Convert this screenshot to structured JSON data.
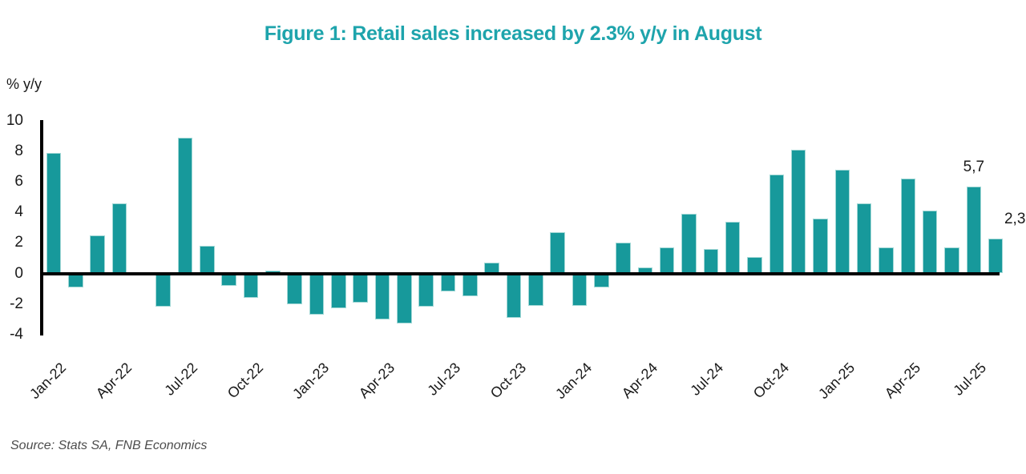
{
  "figure": {
    "title": "Figure 1: Retail sales increased by 2.3% y/y in August",
    "y_axis_unit_label": "% y/y",
    "source": "Source: Stats SA, FNB Economics"
  },
  "colors": {
    "title": "#1ea4ac",
    "bar": "#17999b",
    "bar_edge": "#a3d8d6",
    "axis": "#000000",
    "tick_text": "#1a1a1a",
    "source_text": "#4d4d4d"
  },
  "chart_data": {
    "type": "bar",
    "title": "Figure 1: Retail sales increased by 2.3% y/y in August",
    "ylabel": "% y/y",
    "xlabel": "",
    "ylim": [
      -4,
      10
    ],
    "yticks": [
      10,
      8,
      6,
      4,
      2,
      0,
      -2,
      -4
    ],
    "grid": false,
    "legend": false,
    "x": [
      "Jan-22",
      "Feb-22",
      "Mar-22",
      "Apr-22",
      "May-22",
      "Jun-22",
      "Jul-22",
      "Aug-22",
      "Sep-22",
      "Oct-22",
      "Nov-22",
      "Dec-22",
      "Jan-23",
      "Feb-23",
      "Mar-23",
      "Apr-23",
      "May-23",
      "Jun-23",
      "Jul-23",
      "Aug-23",
      "Sep-23",
      "Oct-23",
      "Nov-23",
      "Dec-23",
      "Jan-24",
      "Feb-24",
      "Mar-24",
      "Apr-24",
      "May-24",
      "Jun-24",
      "Jul-24",
      "Aug-24",
      "Sep-24",
      "Oct-24",
      "Nov-24",
      "Dec-24",
      "Jan-25",
      "Feb-25",
      "Mar-25",
      "Apr-25",
      "May-25",
      "Jun-25",
      "Jul-25",
      "Aug-25"
    ],
    "values": [
      7.9,
      -0.9,
      2.5,
      4.6,
      0.0,
      -2.2,
      8.9,
      1.8,
      -0.8,
      -1.6,
      0.2,
      -2.0,
      -2.7,
      -2.3,
      -1.9,
      -3.0,
      -3.3,
      -2.2,
      -1.2,
      -1.5,
      0.7,
      -2.9,
      -2.1,
      2.7,
      -2.1,
      -0.9,
      2.0,
      0.4,
      1.7,
      3.9,
      1.6,
      3.4,
      1.1,
      6.5,
      8.1,
      3.6,
      6.8,
      4.6,
      1.7,
      6.2,
      4.1,
      1.7,
      5.7,
      2.3
    ],
    "x_tick_labels": [
      "Jan-22",
      "Apr-22",
      "Jul-22",
      "Oct-22",
      "Jan-23",
      "Apr-23",
      "Jul-23",
      "Oct-23",
      "Jan-24",
      "Apr-24",
      "Jul-24",
      "Oct-24",
      "Jan-25",
      "Apr-25",
      "Jul-25"
    ],
    "annotations": [
      {
        "month": "Jul-25",
        "text": "5,7",
        "dx": 0
      },
      {
        "month": "Aug-25",
        "text": "2,3",
        "dx": 24
      }
    ]
  }
}
